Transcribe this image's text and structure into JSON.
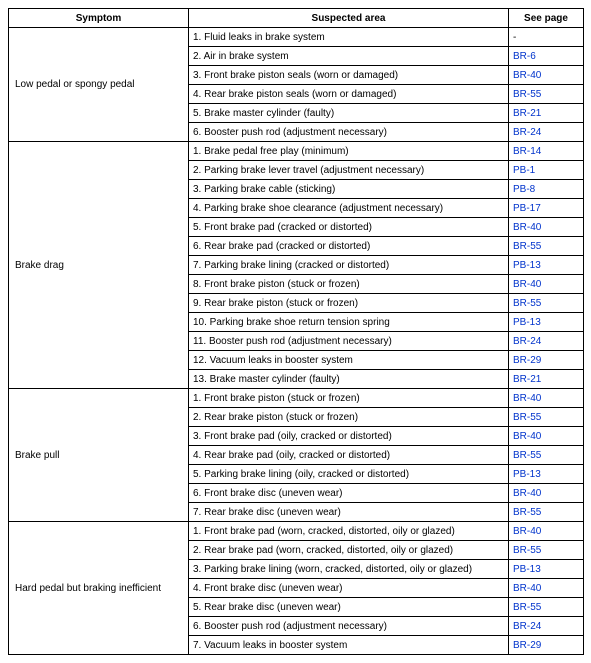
{
  "table": {
    "headers": {
      "symptom": "Symptom",
      "suspected_area": "Suspected area",
      "see_page": "See page"
    },
    "link_color": "#0033cc",
    "groups": [
      {
        "symptom": "Low pedal or spongy pedal",
        "rows": [
          {
            "area": "1. Fluid leaks in brake system",
            "page": "-",
            "is_link": false
          },
          {
            "area": "2. Air in brake system",
            "page": "BR-6",
            "is_link": true
          },
          {
            "area": "3. Front brake piston seals (worn or damaged)",
            "page": "BR-40",
            "is_link": true
          },
          {
            "area": "4. Rear brake piston seals (worn or damaged)",
            "page": "BR-55",
            "is_link": true
          },
          {
            "area": "5. Brake master cylinder (faulty)",
            "page": "BR-21",
            "is_link": true
          },
          {
            "area": "6. Booster push rod (adjustment necessary)",
            "page": "BR-24",
            "is_link": true
          }
        ]
      },
      {
        "symptom": "Brake drag",
        "rows": [
          {
            "area": "1. Brake pedal free play (minimum)",
            "page": "BR-14",
            "is_link": true
          },
          {
            "area": "2. Parking brake lever travel (adjustment necessary)",
            "page": "PB-1",
            "is_link": true
          },
          {
            "area": "3. Parking brake cable (sticking)",
            "page": "PB-8",
            "is_link": true
          },
          {
            "area": "4. Parking brake shoe clearance (adjustment necessary)",
            "page": "PB-17",
            "is_link": true
          },
          {
            "area": "5. Front brake pad (cracked or distorted)",
            "page": "BR-40",
            "is_link": true
          },
          {
            "area": "6. Rear brake pad (cracked or distorted)",
            "page": "BR-55",
            "is_link": true
          },
          {
            "area": "7. Parking brake lining (cracked or distorted)",
            "page": "PB-13",
            "is_link": true
          },
          {
            "area": "8. Front brake piston (stuck or frozen)",
            "page": "BR-40",
            "is_link": true
          },
          {
            "area": "9. Rear brake piston (stuck or frozen)",
            "page": "BR-55",
            "is_link": true
          },
          {
            "area": "10. Parking brake shoe return tension spring",
            "page": "PB-13",
            "is_link": true
          },
          {
            "area": "11. Booster push rod (adjustment necessary)",
            "page": "BR-24",
            "is_link": true
          },
          {
            "area": "12. Vacuum leaks in booster system",
            "page": "BR-29",
            "is_link": true
          },
          {
            "area": "13. Brake master cylinder (faulty)",
            "page": "BR-21",
            "is_link": true
          }
        ]
      },
      {
        "symptom": "Brake pull",
        "rows": [
          {
            "area": "1. Front brake piston (stuck or frozen)",
            "page": "BR-40",
            "is_link": true
          },
          {
            "area": "2. Rear brake piston (stuck or frozen)",
            "page": "BR-55",
            "is_link": true
          },
          {
            "area": "3. Front brake pad (oily, cracked or distorted)",
            "page": "BR-40",
            "is_link": true
          },
          {
            "area": "4. Rear brake pad (oily, cracked or distorted)",
            "page": "BR-55",
            "is_link": true
          },
          {
            "area": "5. Parking brake lining (oily, cracked or distorted)",
            "page": "PB-13",
            "is_link": true
          },
          {
            "area": "6. Front brake disc (uneven wear)",
            "page": "BR-40",
            "is_link": true
          },
          {
            "area": "7. Rear brake disc (uneven wear)",
            "page": "BR-55",
            "is_link": true
          }
        ]
      },
      {
        "symptom": "Hard pedal but braking inefficient",
        "rows": [
          {
            "area": "1. Front brake pad (worn, cracked, distorted, oily or glazed)",
            "page": "BR-40",
            "is_link": true
          },
          {
            "area": "2. Rear brake pad (worn, cracked, distorted, oily or glazed)",
            "page": "BR-55",
            "is_link": true
          },
          {
            "area": "3. Parking brake lining (worn, cracked, distorted, oily or glazed)",
            "page": "PB-13",
            "is_link": true
          },
          {
            "area": "4. Front brake disc (uneven wear)",
            "page": "BR-40",
            "is_link": true
          },
          {
            "area": "5. Rear brake disc (uneven wear)",
            "page": "BR-55",
            "is_link": true
          },
          {
            "area": "6. Booster push rod (adjustment necessary)",
            "page": "BR-24",
            "is_link": true
          },
          {
            "area": "7. Vacuum leaks in booster system",
            "page": "BR-29",
            "is_link": true
          }
        ]
      }
    ]
  }
}
